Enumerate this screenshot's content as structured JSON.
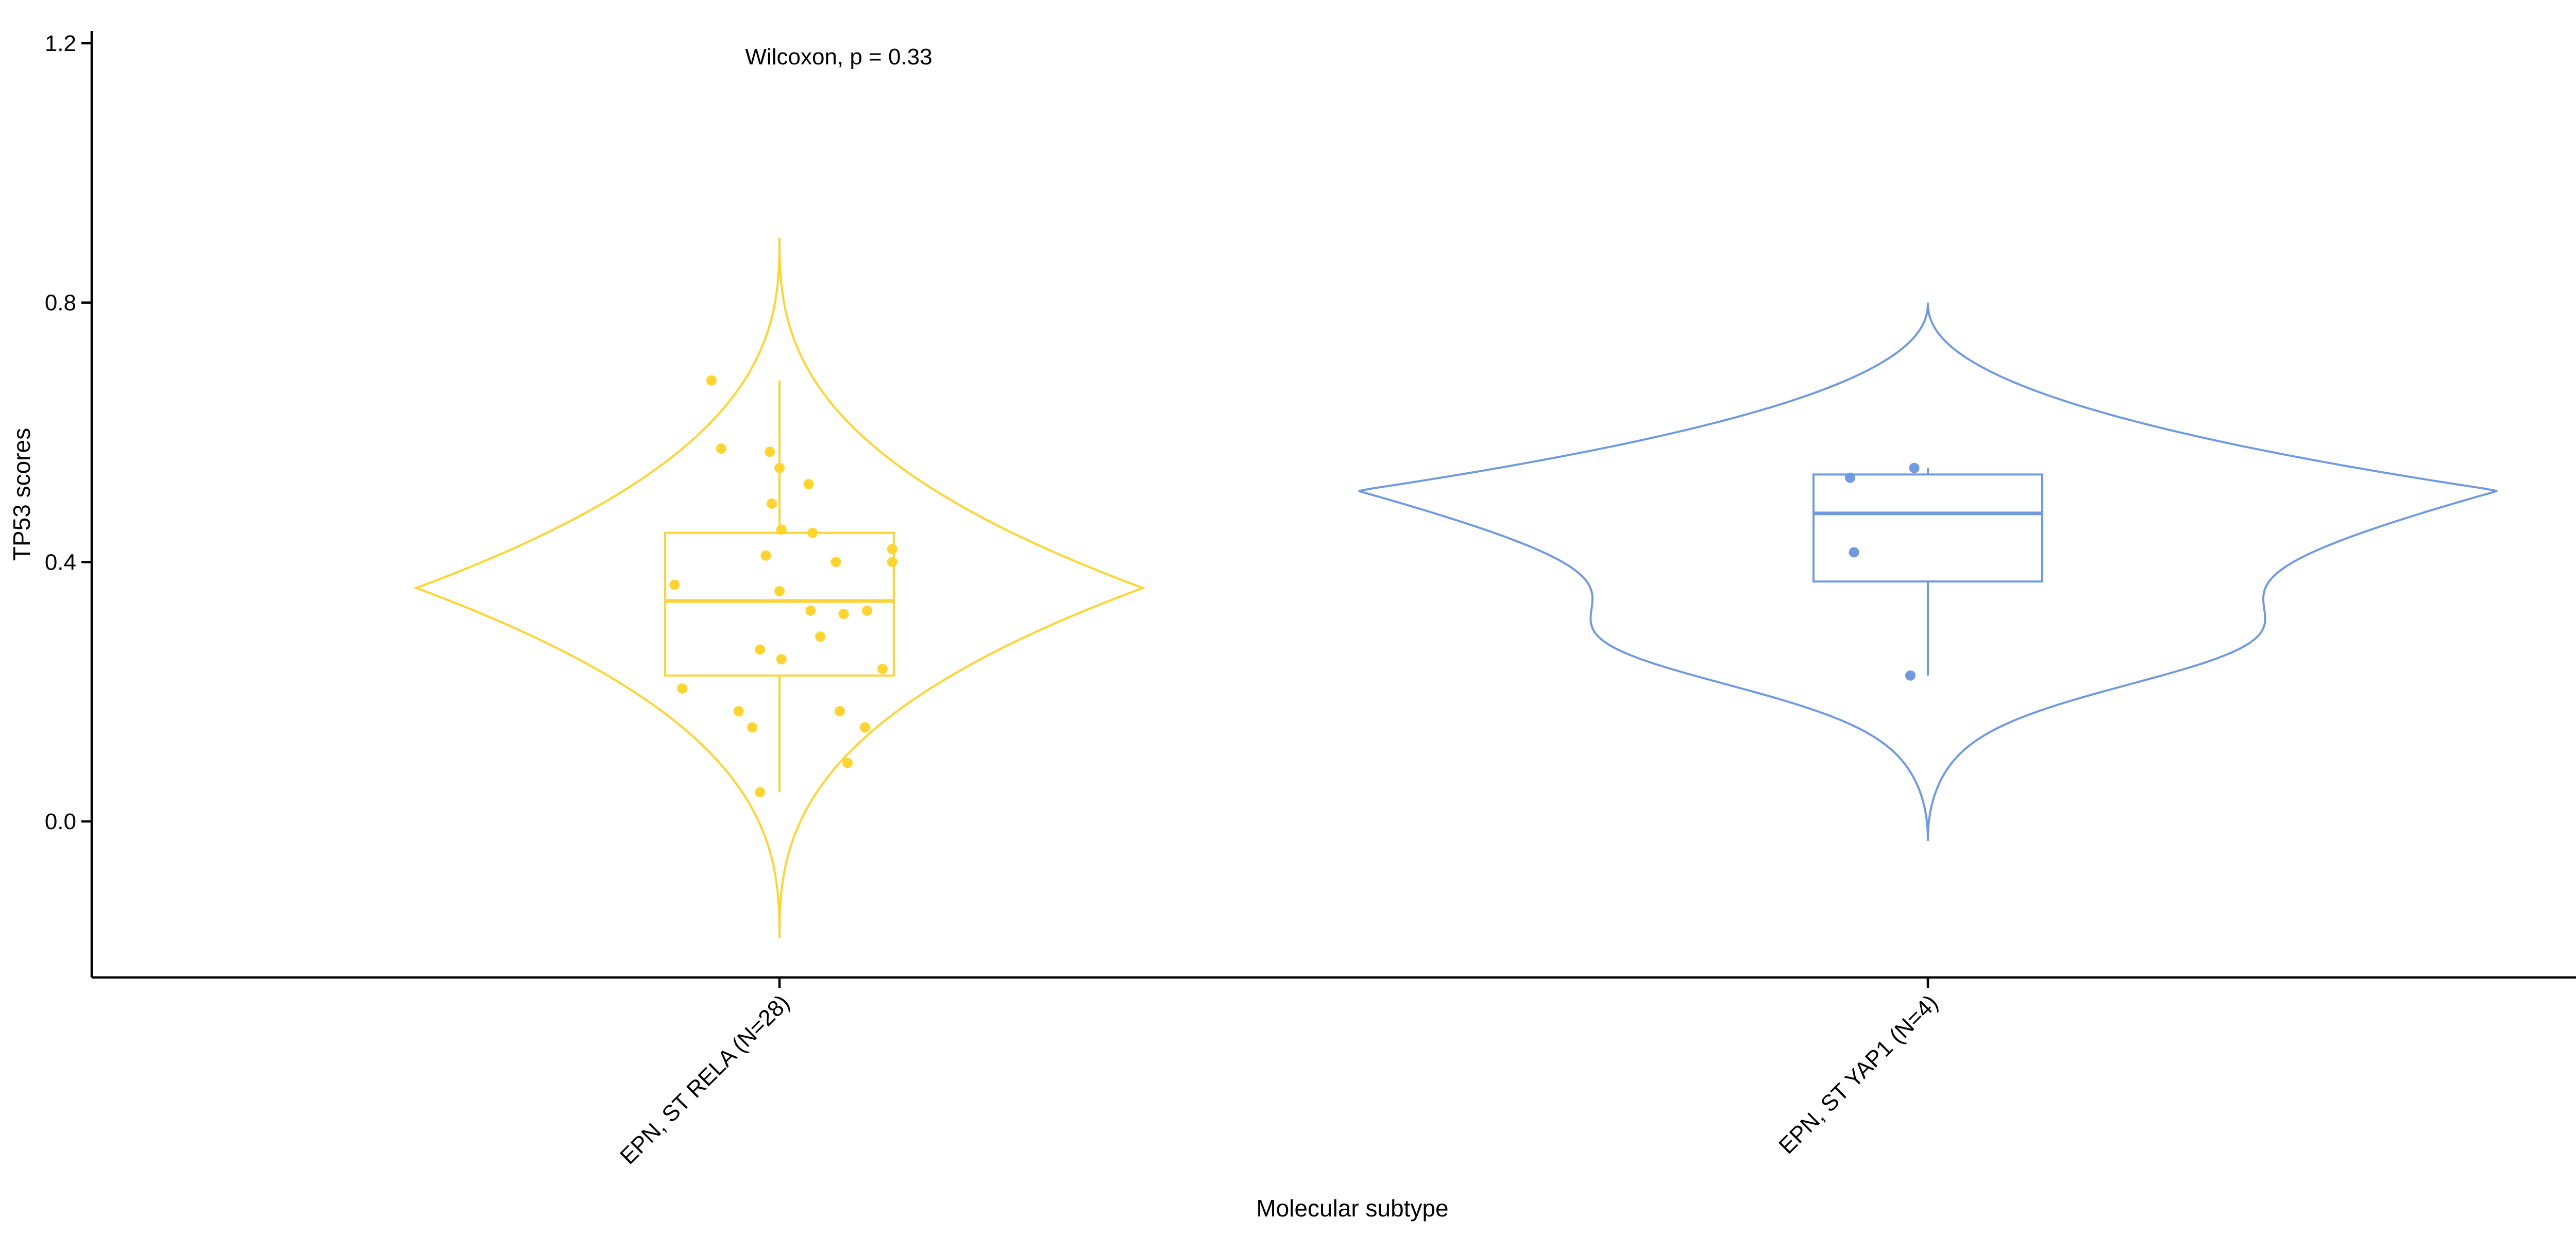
{
  "chart_data": {
    "type": "violin",
    "xlabel": "Molecular subtype",
    "ylabel": "TP53 scores",
    "ylim": [
      -0.24,
      1.22
    ],
    "yticks": [
      0.0,
      0.4,
      0.8,
      1.2
    ],
    "ytick_labels": [
      "0.0",
      "0.4",
      "0.8",
      "1.2"
    ],
    "annotation": "Wilcoxon, p = 0.33",
    "grid": false,
    "legend": "none",
    "groups": [
      {
        "label": "EPN, ST RELA (N=28)",
        "color": "#FFD42E",
        "violin_range": [
          -0.18,
          0.9
        ],
        "violin_peak": 0.36,
        "box": {
          "q1": 0.225,
          "median": 0.34,
          "q3": 0.445,
          "whisker_low": 0.045,
          "whisker_high": 0.68
        },
        "points": [
          {
            "jitter": -0.35,
            "y": 0.68
          },
          {
            "jitter": -0.3,
            "y": 0.575
          },
          {
            "jitter": -0.05,
            "y": 0.57
          },
          {
            "jitter": 0.0,
            "y": 0.545
          },
          {
            "jitter": 0.15,
            "y": 0.52
          },
          {
            "jitter": -0.04,
            "y": 0.49
          },
          {
            "jitter": 0.01,
            "y": 0.45
          },
          {
            "jitter": 0.17,
            "y": 0.445
          },
          {
            "jitter": 0.58,
            "y": 0.42
          },
          {
            "jitter": -0.07,
            "y": 0.41
          },
          {
            "jitter": 0.29,
            "y": 0.4
          },
          {
            "jitter": 0.58,
            "y": 0.4
          },
          {
            "jitter": -0.54,
            "y": 0.365
          },
          {
            "jitter": 0.0,
            "y": 0.355
          },
          {
            "jitter": 0.45,
            "y": 0.325
          },
          {
            "jitter": 0.16,
            "y": 0.325
          },
          {
            "jitter": 0.33,
            "y": 0.32
          },
          {
            "jitter": 0.21,
            "y": 0.285
          },
          {
            "jitter": -0.1,
            "y": 0.265
          },
          {
            "jitter": 0.01,
            "y": 0.25
          },
          {
            "jitter": 0.53,
            "y": 0.235
          },
          {
            "jitter": -0.5,
            "y": 0.205
          },
          {
            "jitter": -0.21,
            "y": 0.17
          },
          {
            "jitter": 0.31,
            "y": 0.17
          },
          {
            "jitter": -0.14,
            "y": 0.145
          },
          {
            "jitter": 0.44,
            "y": 0.145
          },
          {
            "jitter": 0.35,
            "y": 0.09
          },
          {
            "jitter": -0.1,
            "y": 0.045
          }
        ]
      },
      {
        "label": "EPN, ST YAP1 (N=4)",
        "color": "#6F9AE0",
        "violin_range": [
          -0.03,
          0.8
        ],
        "violin_peak": 0.51,
        "box": {
          "q1": 0.37,
          "median": 0.475,
          "q3": 0.535,
          "whisker_low": 0.225,
          "whisker_high": 0.545
        },
        "points": [
          {
            "jitter": -0.4,
            "y": 0.53
          },
          {
            "jitter": -0.07,
            "y": 0.545
          },
          {
            "jitter": -0.38,
            "y": 0.415
          },
          {
            "jitter": -0.09,
            "y": 0.225
          }
        ]
      }
    ]
  }
}
